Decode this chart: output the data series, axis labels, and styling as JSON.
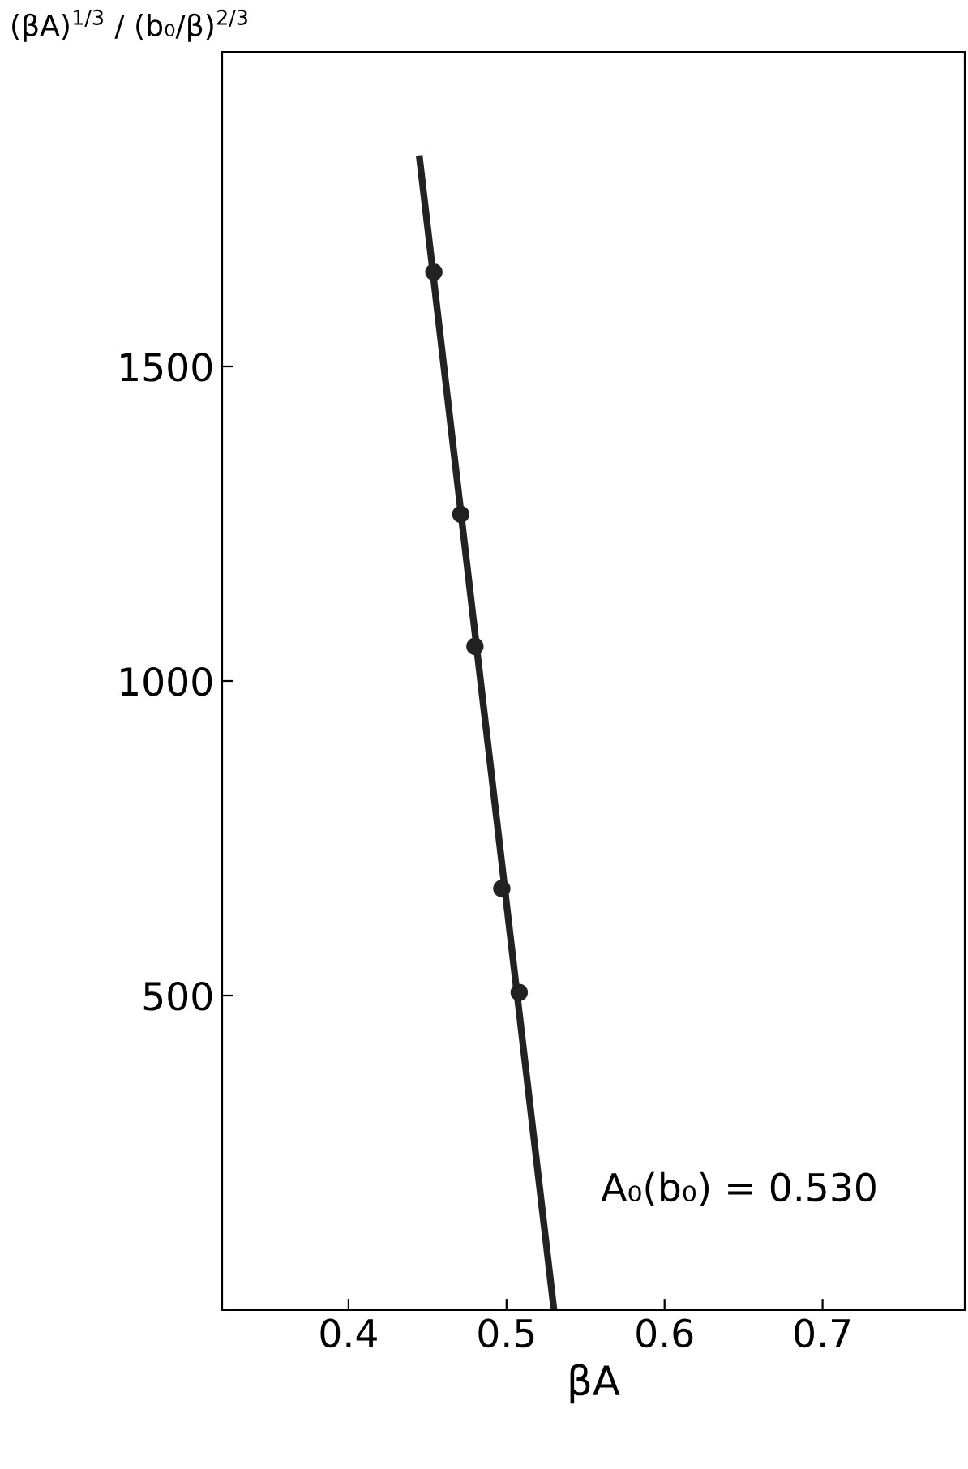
{
  "chart_data": {
    "type": "scatter",
    "xlabel": "βA",
    "ylabel": "(βA)$^{1/3}$ / (b₀/β)$^{2/3}$",
    "series": [
      {
        "color": "#222222",
        "marker": "circle",
        "x": [
          0.454,
          0.471,
          0.48,
          0.497,
          0.508
        ],
        "values": [
          1650,
          1265,
          1055,
          670,
          505
        ]
      },
      {
        "type": "line",
        "color": "#222222",
        "marker": "none",
        "line_style": "solid",
        "x": [
          0.445,
          0.53
        ],
        "values": [
          1830,
          0
        ]
      }
    ],
    "xlim": [
      0.32,
      0.79
    ],
    "ylim": [
      0,
      2000
    ],
    "xticks": [
      0.4,
      0.5,
      0.6,
      0.7
    ],
    "yticks": [
      500,
      1000,
      1500
    ],
    "grid": false,
    "legend": false,
    "annotations": [
      "A₀(b₀) = 0.530"
    ]
  }
}
